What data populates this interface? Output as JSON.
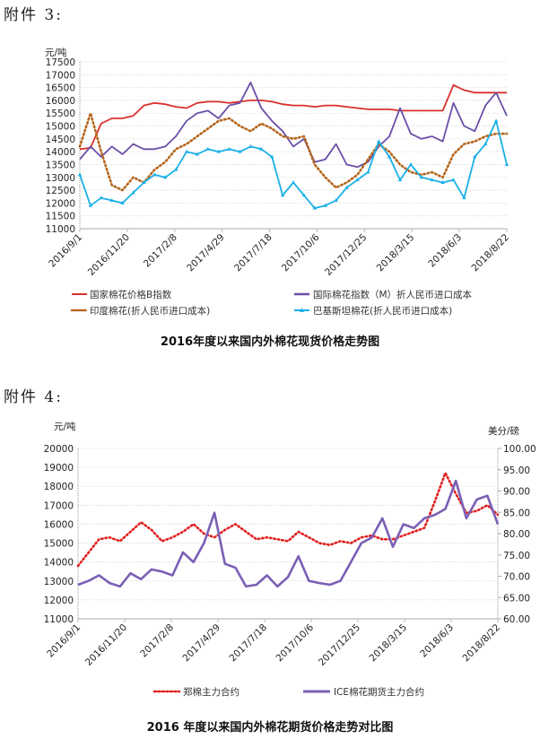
{
  "attachment3_label": "附件 3:",
  "attachment4_label": "附件 4:",
  "chart_data": [
    {
      "type": "line",
      "title": "2016年度以来国内外棉花现货价格走势图",
      "ylabel": "元/吨",
      "ylim": [
        11000,
        17500
      ],
      "yticks": [
        "11000",
        "11500",
        "12000",
        "12500",
        "13000",
        "13500",
        "14000",
        "14500",
        "15000",
        "15500",
        "16000",
        "16500",
        "17000",
        "17500"
      ],
      "xticks": [
        "2016/9/1",
        "2016/11/20",
        "2017/2/8",
        "2017/4/29",
        "2017/7/18",
        "2017/10/6",
        "2017/12/25",
        "2018/3/15",
        "2018/6/3",
        "2018/8/22"
      ],
      "grid": true,
      "legend_position": "bottom",
      "series": [
        {
          "name": "国家棉花价格B指数",
          "color": "#d9302c",
          "style": "solid",
          "values": [
            14100,
            14150,
            15100,
            15300,
            15300,
            15400,
            15800,
            15900,
            15850,
            15750,
            15700,
            15900,
            15950,
            15950,
            15900,
            15950,
            16000,
            16000,
            15950,
            15850,
            15800,
            15800,
            15750,
            15800,
            15800,
            15750,
            15700,
            15650,
            15650,
            15650,
            15600,
            15600,
            15600,
            15600,
            15600,
            16600,
            16400,
            16300,
            16300,
            16300,
            16300
          ]
        },
        {
          "name": "国际棉花指数（M）折人民币进口成本",
          "color": "#6b4fa8",
          "style": "solid",
          "values": [
            13700,
            14200,
            13800,
            14200,
            13900,
            14300,
            14100,
            14100,
            14200,
            14600,
            15200,
            15500,
            15600,
            15300,
            15800,
            15900,
            16700,
            15700,
            15200,
            14800,
            14200,
            14500,
            13600,
            13700,
            14300,
            13500,
            13400,
            13600,
            14200,
            14600,
            15700,
            14700,
            14500,
            14600,
            14400,
            15900,
            15000,
            14800,
            15800,
            16300,
            15400
          ]
        },
        {
          "name": "印度棉花(折人民币进口成本)",
          "color": "#b5651d",
          "style": "dotted",
          "values": [
            14200,
            15500,
            14000,
            12700,
            12500,
            13000,
            12800,
            13300,
            13600,
            14100,
            14300,
            14600,
            14900,
            15200,
            15300,
            15000,
            14800,
            15100,
            14900,
            14600,
            14500,
            14600,
            13500,
            13000,
            12600,
            12800,
            13100,
            13700,
            14300,
            14000,
            13500,
            13200,
            13100,
            13200,
            13000,
            13900,
            14300,
            14400,
            14600,
            14700,
            14700
          ]
        },
        {
          "name": "巴基斯坦棉花(折人民币进口成本)",
          "color": "#1ab0e8",
          "style": "marker",
          "values": [
            13100,
            11900,
            12200,
            12100,
            12000,
            12400,
            12800,
            13100,
            13000,
            13300,
            14000,
            13900,
            14100,
            14000,
            14100,
            14000,
            14200,
            14100,
            13800,
            12300,
            12800,
            12300,
            11800,
            11900,
            12100,
            12600,
            12900,
            13200,
            14400,
            13800,
            12900,
            13500,
            13000,
            12900,
            12800,
            12900,
            12200,
            13800,
            14300,
            15200,
            13500
          ]
        }
      ]
    },
    {
      "type": "line",
      "title": "2016 年度以来国内外棉花期货价格走势对比图",
      "ylabel": "元/吨",
      "ylabel_right": "美分/磅",
      "ylim": [
        11000,
        20000
      ],
      "ylim_right": [
        60,
        100
      ],
      "yticks": [
        "11000",
        "12000",
        "13000",
        "14000",
        "15000",
        "16000",
        "17000",
        "18000",
        "19000",
        "20000"
      ],
      "yticks_right": [
        "60.00",
        "65.00",
        "70.00",
        "75.00",
        "80.00",
        "85.00",
        "90.00",
        "95.00",
        "100.00"
      ],
      "xticks": [
        "2016/9/1",
        "2016/11/20",
        "2017/2/8",
        "2017/4/29",
        "2017/7/18",
        "2017/10/6",
        "2017/12/25",
        "2018/3/15",
        "2018/6/3",
        "2018/8/22"
      ],
      "grid": true,
      "legend_position": "bottom",
      "series": [
        {
          "name": "郑棉主力合约",
          "color": "#e02020",
          "style": "dotted",
          "axis": "left",
          "values": [
            13800,
            14500,
            15200,
            15300,
            15100,
            15600,
            16100,
            15700,
            15100,
            15300,
            15600,
            16000,
            15500,
            15300,
            15700,
            16000,
            15600,
            15200,
            15300,
            15200,
            15100,
            15600,
            15300,
            15000,
            14900,
            15100,
            15000,
            15300,
            15400,
            15200,
            15200,
            15400,
            15600,
            15800,
            17200,
            18700,
            17600,
            16600,
            16700,
            17000,
            16500
          ]
        },
        {
          "name": "ICE棉花期货主力合约",
          "color": "#7b5fb5",
          "style": "solid",
          "axis": "right",
          "values": [
            68.0,
            68.9,
            70.2,
            68.4,
            67.6,
            70.7,
            69.3,
            71.6,
            71.1,
            70.2,
            75.6,
            73.3,
            77.8,
            84.9,
            72.9,
            72.0,
            67.6,
            68.0,
            70.2,
            67.6,
            69.8,
            74.7,
            68.9,
            68.4,
            68.0,
            68.9,
            73.3,
            77.8,
            79.1,
            83.6,
            76.9,
            82.2,
            81.3,
            83.6,
            84.4,
            85.8,
            92.4,
            83.6,
            88.0,
            88.9,
            82.2
          ]
        }
      ]
    }
  ]
}
